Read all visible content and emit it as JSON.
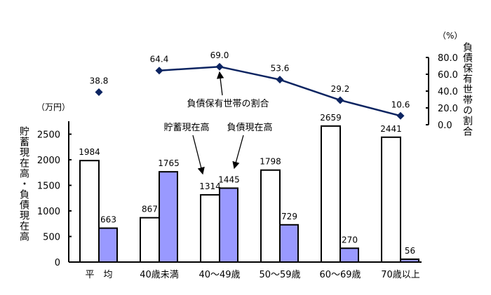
{
  "chart_data": {
    "type": "bar",
    "title": "",
    "categories": [
      "平　均",
      "40歳未満",
      "40～49歳",
      "50～59歳",
      "60～69歳",
      "70歳以上"
    ],
    "series": [
      {
        "name": "貯蓄現在高",
        "type": "bar",
        "axis": "left",
        "color": "#ffffff",
        "values": [
          1984,
          867,
          1314,
          1798,
          2659,
          2441
        ]
      },
      {
        "name": "負債現在高",
        "type": "bar",
        "axis": "left",
        "color": "#9999ff",
        "values": [
          663,
          1765,
          1445,
          729,
          270,
          56
        ]
      },
      {
        "name": "負債保有世帯の割合",
        "type": "line",
        "axis": "right",
        "color": "#0c2461",
        "values": [
          38.8,
          64.4,
          69.0,
          53.6,
          29.2,
          10.6
        ],
        "connected_from_index": 1
      }
    ],
    "left_axis": {
      "label": "貯蓄現在高・負債現在高",
      "unit": "（万円）",
      "ticks": [
        0,
        500,
        1000,
        1500,
        2000,
        2500
      ],
      "ylim": [
        0,
        2700
      ]
    },
    "right_axis": {
      "label": "負債保有世帯の割合",
      "unit": "（%）",
      "ticks": [
        "0.0",
        "20.0",
        "40.0",
        "60.0",
        "80.0"
      ],
      "ylim": [
        0,
        80
      ]
    },
    "annotations": [
      {
        "text": "負債保有世帯の割合",
        "target": "line"
      },
      {
        "text": "貯蓄現在高",
        "target": "savings-bar"
      },
      {
        "text": "負債現在高",
        "target": "debt-bar"
      }
    ],
    "grid": false,
    "legend": "none (arrow annotations)"
  }
}
